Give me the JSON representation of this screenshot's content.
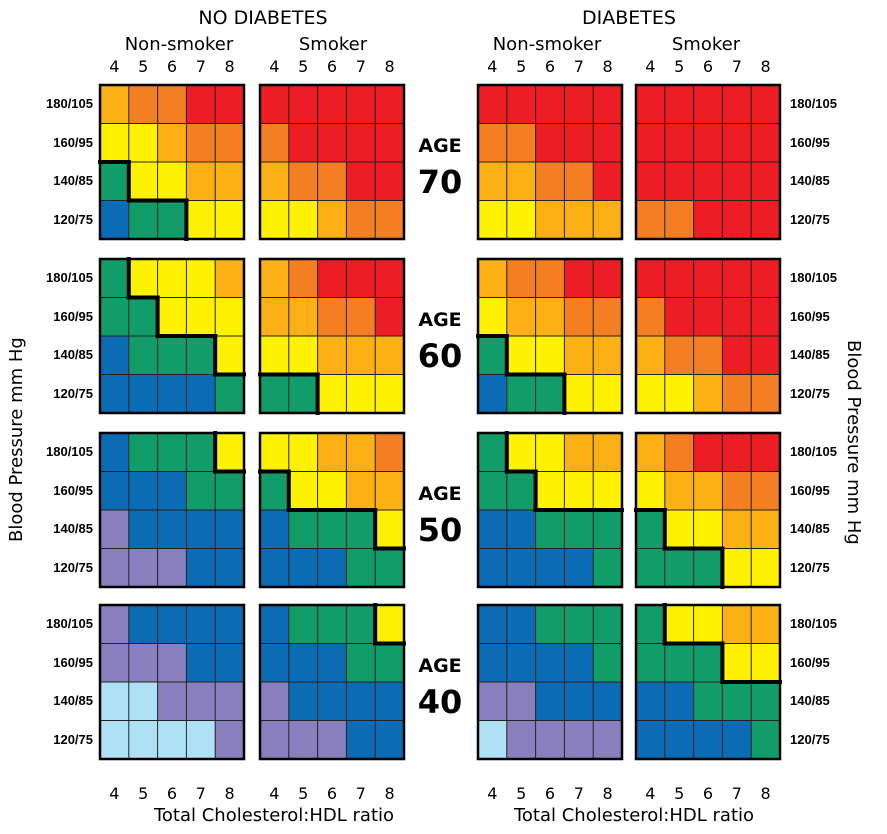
{
  "colors": {
    "light_blue": "#aee1f5",
    "purple": "#8a7fbd",
    "blue": "#0c6bb5",
    "green": "#129c6a",
    "yellow": "#fff200",
    "light_orange": "#fbb016",
    "orange": "#f47f22",
    "red": "#ec1d24"
  },
  "headers": {
    "no_diabetes": "NO DIABETES",
    "diabetes": "DIABETES",
    "non_smoker": "Non-smoker",
    "smoker": "Smoker"
  },
  "ticks": [
    "4",
    "5",
    "6",
    "7",
    "8"
  ],
  "bp_labels": [
    "180/105",
    "160/95",
    "140/85",
    "120/75"
  ],
  "age_word": "AGE",
  "ages": [
    "70",
    "60",
    "50",
    "40"
  ],
  "x_axis_title": "Total Cholesterol:HDL ratio",
  "y_axis_title": "Blood Pressure mm Hg",
  "chart_data": {
    "type": "heatmap",
    "xlabel": "Total Cholesterol:HDL ratio",
    "ylabel": "Blood Pressure mm Hg",
    "x": [
      "4",
      "5",
      "6",
      "7",
      "8"
    ],
    "y": [
      "180/105",
      "160/95",
      "140/85",
      "120/75"
    ],
    "color_scale": [
      "light_blue",
      "purple",
      "blue",
      "green",
      "yellow",
      "light_orange",
      "orange",
      "red"
    ],
    "panels": [
      {
        "diabetes": "NO DIABETES",
        "smoking": "Non-smoker",
        "age": "70",
        "cells": [
          [
            "light_orange",
            "orange",
            "orange",
            "red",
            "red"
          ],
          [
            "yellow",
            "yellow",
            "light_orange",
            "orange",
            "orange"
          ],
          [
            "green",
            "yellow",
            "yellow",
            "light_orange",
            "light_orange"
          ],
          [
            "blue",
            "green",
            "green",
            "yellow",
            "yellow"
          ]
        ]
      },
      {
        "diabetes": "NO DIABETES",
        "smoking": "Smoker",
        "age": "70",
        "cells": [
          [
            "red",
            "red",
            "red",
            "red",
            "red"
          ],
          [
            "orange",
            "red",
            "red",
            "red",
            "red"
          ],
          [
            "light_orange",
            "orange",
            "orange",
            "red",
            "red"
          ],
          [
            "yellow",
            "yellow",
            "light_orange",
            "orange",
            "orange"
          ]
        ]
      },
      {
        "diabetes": "DIABETES",
        "smoking": "Non-smoker",
        "age": "70",
        "cells": [
          [
            "red",
            "red",
            "red",
            "red",
            "red"
          ],
          [
            "orange",
            "orange",
            "red",
            "red",
            "red"
          ],
          [
            "light_orange",
            "light_orange",
            "orange",
            "orange",
            "red"
          ],
          [
            "yellow",
            "yellow",
            "light_orange",
            "light_orange",
            "light_orange"
          ]
        ]
      },
      {
        "diabetes": "DIABETES",
        "smoking": "Smoker",
        "age": "70",
        "cells": [
          [
            "red",
            "red",
            "red",
            "red",
            "red"
          ],
          [
            "red",
            "red",
            "red",
            "red",
            "red"
          ],
          [
            "red",
            "red",
            "red",
            "red",
            "red"
          ],
          [
            "orange",
            "orange",
            "red",
            "red",
            "red"
          ]
        ]
      },
      {
        "diabetes": "NO DIABETES",
        "smoking": "Non-smoker",
        "age": "60",
        "cells": [
          [
            "green",
            "yellow",
            "yellow",
            "yellow",
            "light_orange"
          ],
          [
            "green",
            "green",
            "yellow",
            "yellow",
            "yellow"
          ],
          [
            "blue",
            "green",
            "green",
            "green",
            "yellow"
          ],
          [
            "blue",
            "blue",
            "blue",
            "blue",
            "green"
          ]
        ]
      },
      {
        "diabetes": "NO DIABETES",
        "smoking": "Smoker",
        "age": "60",
        "cells": [
          [
            "light_orange",
            "orange",
            "red",
            "red",
            "red"
          ],
          [
            "light_orange",
            "light_orange",
            "orange",
            "orange",
            "red"
          ],
          [
            "yellow",
            "yellow",
            "light_orange",
            "light_orange",
            "light_orange"
          ],
          [
            "green",
            "green",
            "yellow",
            "yellow",
            "yellow"
          ]
        ]
      },
      {
        "diabetes": "DIABETES",
        "smoking": "Non-smoker",
        "age": "60",
        "cells": [
          [
            "light_orange",
            "orange",
            "orange",
            "red",
            "red"
          ],
          [
            "yellow",
            "light_orange",
            "light_orange",
            "orange",
            "orange"
          ],
          [
            "green",
            "yellow",
            "yellow",
            "light_orange",
            "light_orange"
          ],
          [
            "blue",
            "green",
            "green",
            "yellow",
            "yellow"
          ]
        ]
      },
      {
        "diabetes": "DIABETES",
        "smoking": "Smoker",
        "age": "60",
        "cells": [
          [
            "red",
            "red",
            "red",
            "red",
            "red"
          ],
          [
            "orange",
            "red",
            "red",
            "red",
            "red"
          ],
          [
            "light_orange",
            "orange",
            "orange",
            "red",
            "red"
          ],
          [
            "yellow",
            "yellow",
            "light_orange",
            "orange",
            "orange"
          ]
        ]
      },
      {
        "diabetes": "NO DIABETES",
        "smoking": "Non-smoker",
        "age": "50",
        "cells": [
          [
            "blue",
            "green",
            "green",
            "green",
            "yellow"
          ],
          [
            "blue",
            "blue",
            "blue",
            "green",
            "green"
          ],
          [
            "purple",
            "blue",
            "blue",
            "blue",
            "blue"
          ],
          [
            "purple",
            "purple",
            "purple",
            "blue",
            "blue"
          ]
        ]
      },
      {
        "diabetes": "NO DIABETES",
        "smoking": "Smoker",
        "age": "50",
        "cells": [
          [
            "yellow",
            "yellow",
            "light_orange",
            "light_orange",
            "orange"
          ],
          [
            "green",
            "yellow",
            "yellow",
            "light_orange",
            "light_orange"
          ],
          [
            "blue",
            "green",
            "green",
            "green",
            "yellow"
          ],
          [
            "blue",
            "blue",
            "blue",
            "green",
            "green"
          ]
        ]
      },
      {
        "diabetes": "DIABETES",
        "smoking": "Non-smoker",
        "age": "50",
        "cells": [
          [
            "green",
            "yellow",
            "yellow",
            "light_orange",
            "light_orange"
          ],
          [
            "green",
            "green",
            "yellow",
            "yellow",
            "yellow"
          ],
          [
            "blue",
            "blue",
            "green",
            "green",
            "green"
          ],
          [
            "blue",
            "blue",
            "blue",
            "blue",
            "green"
          ]
        ]
      },
      {
        "diabetes": "DIABETES",
        "smoking": "Smoker",
        "age": "50",
        "cells": [
          [
            "light_orange",
            "orange",
            "red",
            "red",
            "red"
          ],
          [
            "yellow",
            "light_orange",
            "light_orange",
            "orange",
            "orange"
          ],
          [
            "green",
            "yellow",
            "yellow",
            "light_orange",
            "light_orange"
          ],
          [
            "green",
            "green",
            "green",
            "yellow",
            "yellow"
          ]
        ]
      },
      {
        "diabetes": "NO DIABETES",
        "smoking": "Non-smoker",
        "age": "40",
        "cells": [
          [
            "purple",
            "blue",
            "blue",
            "blue",
            "blue"
          ],
          [
            "purple",
            "purple",
            "purple",
            "blue",
            "blue"
          ],
          [
            "light_blue",
            "light_blue",
            "purple",
            "purple",
            "purple"
          ],
          [
            "light_blue",
            "light_blue",
            "light_blue",
            "light_blue",
            "purple"
          ]
        ]
      },
      {
        "diabetes": "NO DIABETES",
        "smoking": "Smoker",
        "age": "40",
        "cells": [
          [
            "blue",
            "green",
            "green",
            "green",
            "yellow"
          ],
          [
            "blue",
            "blue",
            "blue",
            "green",
            "green"
          ],
          [
            "purple",
            "blue",
            "blue",
            "blue",
            "blue"
          ],
          [
            "purple",
            "purple",
            "purple",
            "blue",
            "blue"
          ]
        ]
      },
      {
        "diabetes": "DIABETES",
        "smoking": "Non-smoker",
        "age": "40",
        "cells": [
          [
            "blue",
            "blue",
            "green",
            "green",
            "green"
          ],
          [
            "blue",
            "blue",
            "blue",
            "blue",
            "green"
          ],
          [
            "purple",
            "purple",
            "blue",
            "blue",
            "blue"
          ],
          [
            "light_blue",
            "purple",
            "purple",
            "purple",
            "purple"
          ]
        ]
      },
      {
        "diabetes": "DIABETES",
        "smoking": "Smoker",
        "age": "40",
        "cells": [
          [
            "green",
            "yellow",
            "yellow",
            "light_orange",
            "light_orange"
          ],
          [
            "green",
            "green",
            "green",
            "yellow",
            "yellow"
          ],
          [
            "blue",
            "blue",
            "green",
            "green",
            "green"
          ],
          [
            "blue",
            "blue",
            "blue",
            "blue",
            "green"
          ]
        ]
      }
    ]
  }
}
